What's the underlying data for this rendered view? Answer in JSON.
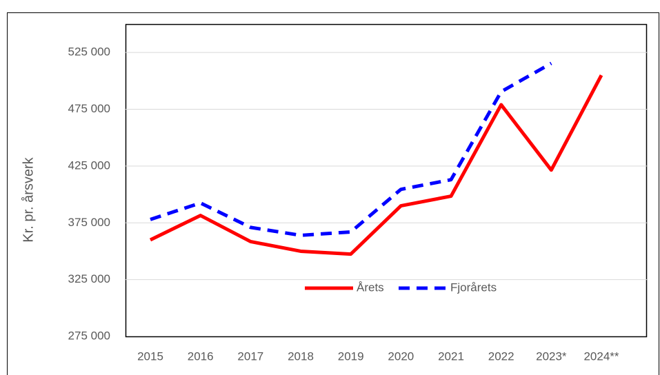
{
  "chart_data": {
    "type": "line",
    "y_label": "Kr. pr. årsverk",
    "categories": [
      "2015",
      "2016",
      "2017",
      "2018",
      "2019",
      "2020",
      "2021",
      "2022",
      "2023*",
      "2024**"
    ],
    "series": [
      {
        "name": "Årets",
        "color": "#ff0000",
        "dash": false,
        "values": [
          360000,
          381500,
          358500,
          350000,
          347500,
          390000,
          398500,
          479000,
          421500,
          505000
        ]
      },
      {
        "name": "Fjorårets",
        "color": "#0000ff",
        "dash": true,
        "values": [
          378000,
          392500,
          371000,
          364000,
          367000,
          404500,
          413000,
          490500,
          515500,
          null
        ]
      }
    ],
    "ylim": [
      275000,
      550000
    ],
    "yticks": [
      {
        "value": 275000,
        "label": "275 000"
      },
      {
        "value": 325000,
        "label": "325 000"
      },
      {
        "value": 375000,
        "label": "375 000"
      },
      {
        "value": 425000,
        "label": "425 000"
      },
      {
        "value": 475000,
        "label": "475 000"
      },
      {
        "value": 525000,
        "label": "525 000"
      }
    ],
    "grid": true
  }
}
